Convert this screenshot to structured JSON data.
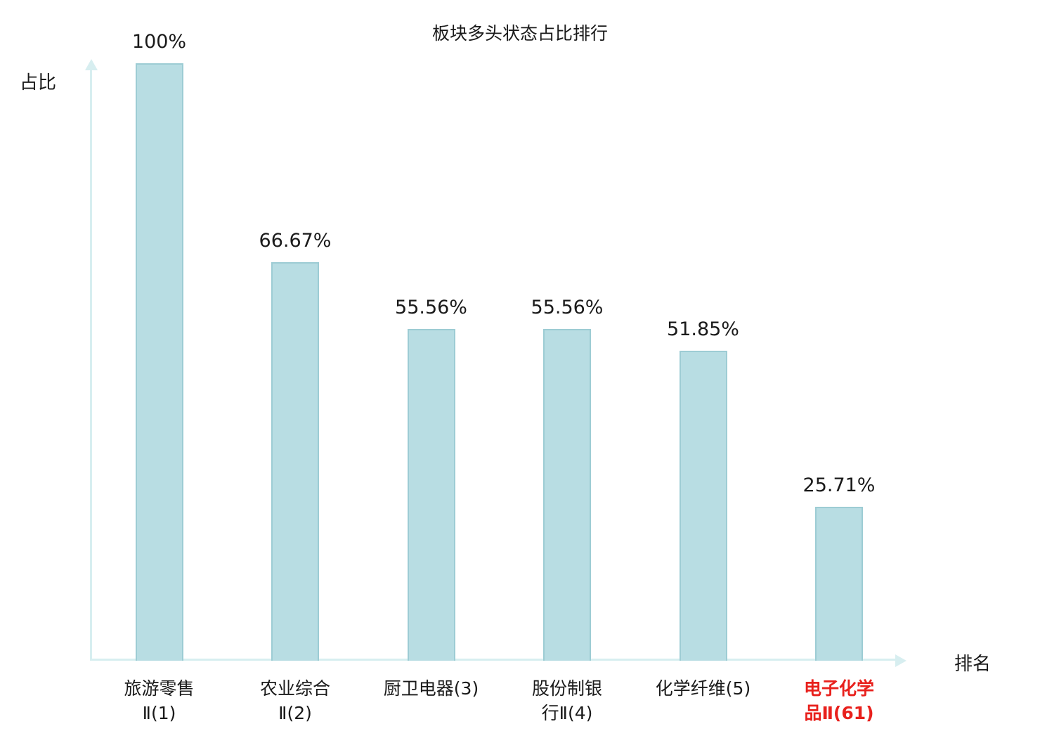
{
  "chart_data": {
    "type": "bar",
    "title": "板块多头状态占比排行",
    "ylabel": "占比",
    "xlabel": "排名",
    "categories": [
      "旅游零售Ⅱ(1)",
      "农业综合Ⅱ(2)",
      "厨卫电器(3)",
      "股份制银行Ⅱ(4)",
      "化学纤维(5)",
      "电子化学品Ⅱ(61)"
    ],
    "category_lines": [
      [
        "旅游零售",
        "Ⅱ(1)"
      ],
      [
        "农业综合",
        "Ⅱ(2)"
      ],
      [
        "厨卫电器(3)"
      ],
      [
        "股份制银",
        "行Ⅱ(4)"
      ],
      [
        "化学纤维(5)"
      ],
      [
        "电子化学",
        "品Ⅱ(61)"
      ]
    ],
    "values": [
      100,
      66.67,
      55.56,
      55.56,
      51.85,
      25.71
    ],
    "value_labels": [
      "100%",
      "66.67%",
      "55.56%",
      "55.56%",
      "51.85%",
      "25.71%"
    ],
    "highlight_index": 5,
    "ylim": [
      0,
      100
    ],
    "grid": false,
    "legend": "none",
    "colors": {
      "bar_fill": "#b8dde3",
      "bar_border": "#9dccd4",
      "axis": "#d7eef0",
      "text": "#1a1a1a",
      "highlight_text": "#e8201c"
    }
  }
}
